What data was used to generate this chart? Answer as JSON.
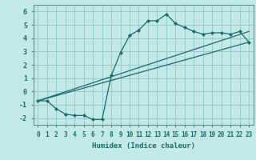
{
  "title": "",
  "xlabel": "Humidex (Indice chaleur)",
  "xlim": [
    -0.5,
    23.5
  ],
  "ylim": [
    -2.5,
    6.5
  ],
  "yticks": [
    -2,
    -1,
    0,
    1,
    2,
    3,
    4,
    5,
    6
  ],
  "xticks": [
    0,
    1,
    2,
    3,
    4,
    5,
    6,
    7,
    8,
    9,
    10,
    11,
    12,
    13,
    14,
    15,
    16,
    17,
    18,
    19,
    20,
    21,
    22,
    23
  ],
  "xtick_labels": [
    "0",
    "1",
    "2",
    "3",
    "4",
    "5",
    "6",
    "7",
    "8",
    "9",
    "10",
    "11",
    "12",
    "13",
    "14",
    "15",
    "16",
    "17",
    "18",
    "19",
    "20",
    "21",
    "22",
    "23"
  ],
  "bg_color": "#c2e8e8",
  "grid_color": "#96cccc",
  "line_color": "#1a6b6b",
  "line1_x": [
    0,
    1,
    2,
    3,
    4,
    5,
    6,
    7,
    8,
    9,
    10,
    11,
    12,
    13,
    14,
    15,
    16,
    17,
    18,
    19,
    20,
    21,
    22,
    23
  ],
  "line1_y": [
    -0.7,
    -0.7,
    -1.3,
    -1.7,
    -1.8,
    -1.8,
    -2.1,
    -2.1,
    1.2,
    2.9,
    4.2,
    4.6,
    5.3,
    5.3,
    5.8,
    5.1,
    4.8,
    4.5,
    4.3,
    4.4,
    4.4,
    4.3,
    4.5,
    3.7
  ],
  "line2_x": [
    0,
    23
  ],
  "line2_y": [
    -0.7,
    3.7
  ],
  "line3_x": [
    0,
    23
  ],
  "line3_y": [
    -0.7,
    4.5
  ],
  "marker": "D",
  "markersize": 2.2,
  "linewidth": 0.9,
  "tick_fontsize": 5.5,
  "xlabel_fontsize": 6.5
}
